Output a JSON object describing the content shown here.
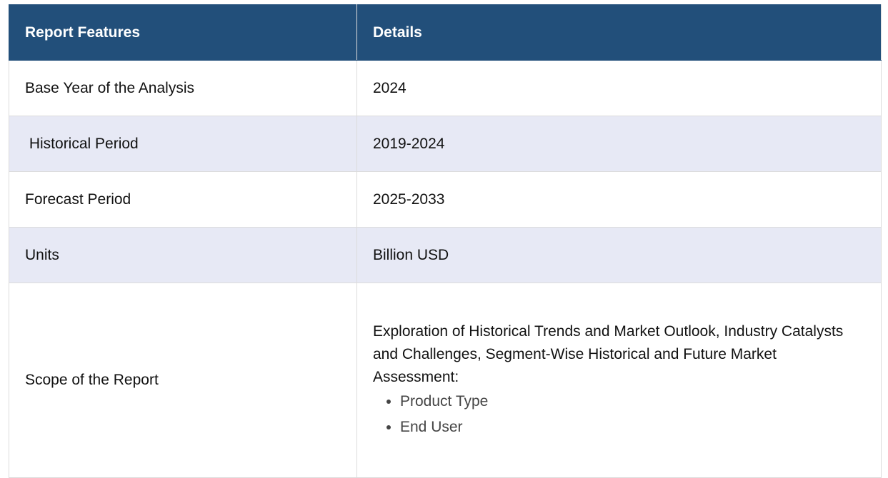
{
  "table": {
    "header": [
      "Report Features",
      "Details"
    ],
    "rows": [
      [
        "Base Year of the Analysis",
        "2024"
      ],
      [
        " Historical Period",
        "2019-2024"
      ],
      [
        "Forecast Period",
        "2025-2033"
      ],
      [
        "Units",
        "Billion USD"
      ],
      [
        "Scope of the Report",
        {
          "text": "Exploration of Historical Trends and Market Outlook, Industry Catalysts and Challenges, Segment-Wise Historical and Future Market Assessment:",
          "items": [
            "Product Type",
            "End User"
          ]
        }
      ]
    ]
  }
}
